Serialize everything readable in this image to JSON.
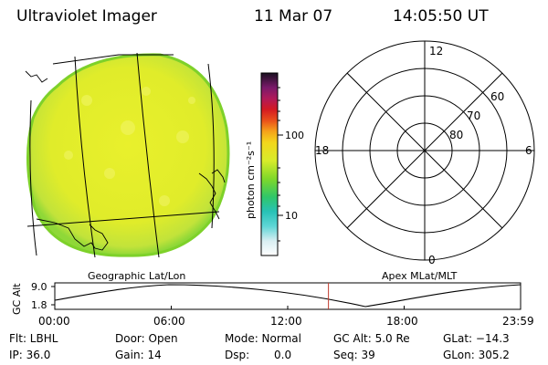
{
  "header": {
    "title": "Ultraviolet Imager",
    "date": "11 Mar 07",
    "time": "14:05:50 UT"
  },
  "colorbar": {
    "unit_label": "photon cm⁻²s⁻¹",
    "tick_100": "100",
    "tick_10": "10"
  },
  "polar_plot": {
    "mlt_12": "12",
    "mlt_18": "18",
    "mlt_6": "6",
    "mlt_0": "0",
    "lat_60": "60",
    "lat_70": "70",
    "lat_80": "80"
  },
  "labels": {
    "left_panel": "Geographic Lat/Lon",
    "right_panel": "Apex MLat/MLT"
  },
  "altitude_plot": {
    "ylabel": "GC Alt",
    "ytick_top": "9.0",
    "ytick_bottom": "1.8",
    "xticks": [
      "00:00",
      "06:00",
      "12:00",
      "18:00",
      "23:59"
    ],
    "current_time_hours": 14.1
  },
  "info": {
    "flt": "Flt: LBHL",
    "door": "Door: Open",
    "mode": "Mode: Normal",
    "gc_alt": "GC Alt: 5.0 Re",
    "glat": "GLat: −14.3",
    "ip": "IP: 36.0",
    "gain": "Gain: 14",
    "dsp_label": "Dsp:",
    "dsp_value": "0.0",
    "seq": "Seq: 39",
    "glon": "GLon: 305.2"
  },
  "colors": {
    "disk": "#e3ee2a",
    "disk_edge": "#7ed12a",
    "marker": "#c0392b"
  }
}
